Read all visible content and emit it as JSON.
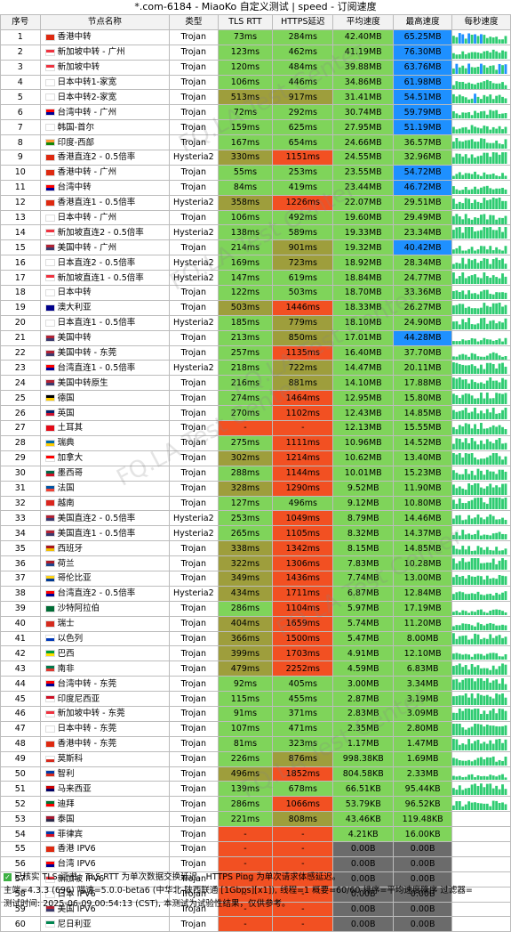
{
  "title": "*.com-6184 - MiaoKo 自定义测试 | speed - 订阅速度",
  "headers": [
    "序号",
    "节点名称",
    "类型",
    "TLS RTT",
    "HTTPS延迟",
    "平均速度",
    "最高速度",
    "每秒速度"
  ],
  "colors": {
    "green": "#7fd45a",
    "red": "#f25022",
    "olive": "#9e9e3c",
    "yellow_green": "#b8cf3d",
    "gray": "#6b6b6b",
    "blue": "#1e90ff",
    "header": "#f2f2f2"
  },
  "rows": [
    {
      "i": "1",
      "name": "香港中转",
      "flag": "HK",
      "type": "Trojan",
      "tls": "73ms",
      "https": "284ms",
      "avg": "42.40MB",
      "max": "65.25MB"
    },
    {
      "i": "2",
      "name": "新加坡中转 - 广州",
      "flag": "SG",
      "type": "Trojan",
      "tls": "123ms",
      "https": "462ms",
      "avg": "41.19MB",
      "max": "76.30MB"
    },
    {
      "i": "3",
      "name": "新加坡中转",
      "flag": "SG",
      "type": "Trojan",
      "tls": "120ms",
      "https": "484ms",
      "avg": "39.88MB",
      "max": "63.76MB"
    },
    {
      "i": "4",
      "name": "日本中转1-家宽",
      "flag": "JP",
      "type": "Trojan",
      "tls": "106ms",
      "https": "446ms",
      "avg": "34.86MB",
      "max": "61.98MB"
    },
    {
      "i": "5",
      "name": "日本中转2-家宽",
      "flag": "JP",
      "type": "Trojan",
      "tls": "513ms",
      "https": "917ms",
      "avg": "31.41MB",
      "max": "54.51MB"
    },
    {
      "i": "6",
      "name": "台湾中转 - 广州",
      "flag": "TW",
      "type": "Trojan",
      "tls": "72ms",
      "https": "292ms",
      "avg": "30.74MB",
      "max": "59.79MB"
    },
    {
      "i": "7",
      "name": "韩国-首尔",
      "flag": "KR",
      "type": "Trojan",
      "tls": "159ms",
      "https": "625ms",
      "avg": "27.95MB",
      "max": "51.19MB"
    },
    {
      "i": "8",
      "name": "印度-西部",
      "flag": "IN",
      "type": "Trojan",
      "tls": "167ms",
      "https": "654ms",
      "avg": "24.66MB",
      "max": "36.57MB"
    },
    {
      "i": "9",
      "name": "香港直连2 - 0.5倍率",
      "flag": "HK",
      "type": "Hysteria2",
      "tls": "330ms",
      "https": "1151ms",
      "avg": "24.55MB",
      "max": "32.96MB"
    },
    {
      "i": "10",
      "name": "香港中转 - 广州",
      "flag": "HK",
      "type": "Trojan",
      "tls": "55ms",
      "https": "253ms",
      "avg": "23.55MB",
      "max": "54.72MB"
    },
    {
      "i": "11",
      "name": "台湾中转",
      "flag": "TW",
      "type": "Trojan",
      "tls": "84ms",
      "https": "419ms",
      "avg": "23.44MB",
      "max": "46.72MB"
    },
    {
      "i": "12",
      "name": "香港直连1 - 0.5倍率",
      "flag": "HK",
      "type": "Hysteria2",
      "tls": "358ms",
      "https": "1226ms",
      "avg": "22.07MB",
      "max": "29.51MB"
    },
    {
      "i": "13",
      "name": "日本中转 - 广州",
      "flag": "JP",
      "type": "Trojan",
      "tls": "106ms",
      "https": "492ms",
      "avg": "19.60MB",
      "max": "29.49MB"
    },
    {
      "i": "14",
      "name": "新加坡直连2 - 0.5倍率",
      "flag": "SG",
      "type": "Hysteria2",
      "tls": "138ms",
      "https": "589ms",
      "avg": "19.33MB",
      "max": "23.34MB"
    },
    {
      "i": "15",
      "name": "美国中转 - 广州",
      "flag": "US",
      "type": "Trojan",
      "tls": "214ms",
      "https": "901ms",
      "avg": "19.32MB",
      "max": "40.42MB"
    },
    {
      "i": "16",
      "name": "日本直连2 - 0.5倍率",
      "flag": "JP",
      "type": "Hysteria2",
      "tls": "169ms",
      "https": "723ms",
      "avg": "18.92MB",
      "max": "28.34MB"
    },
    {
      "i": "17",
      "name": "新加坡直连1 - 0.5倍率",
      "flag": "SG",
      "type": "Hysteria2",
      "tls": "147ms",
      "https": "619ms",
      "avg": "18.84MB",
      "max": "24.77MB"
    },
    {
      "i": "18",
      "name": "日本中转",
      "flag": "JP",
      "type": "Trojan",
      "tls": "122ms",
      "https": "503ms",
      "avg": "18.70MB",
      "max": "33.36MB"
    },
    {
      "i": "19",
      "name": "澳大利亚",
      "flag": "AU",
      "type": "Trojan",
      "tls": "503ms",
      "https": "1446ms",
      "avg": "18.33MB",
      "max": "26.27MB"
    },
    {
      "i": "20",
      "name": "日本直连1 - 0.5倍率",
      "flag": "JP",
      "type": "Hysteria2",
      "tls": "185ms",
      "https": "779ms",
      "avg": "18.10MB",
      "max": "24.90MB"
    },
    {
      "i": "21",
      "name": "美国中转",
      "flag": "US",
      "type": "Trojan",
      "tls": "213ms",
      "https": "850ms",
      "avg": "17.01MB",
      "max": "44.28MB"
    },
    {
      "i": "22",
      "name": "美国中转 - 东莞",
      "flag": "US",
      "type": "Trojan",
      "tls": "257ms",
      "https": "1135ms",
      "avg": "16.40MB",
      "max": "37.70MB"
    },
    {
      "i": "23",
      "name": "台湾直连1 - 0.5倍率",
      "flag": "TW",
      "type": "Hysteria2",
      "tls": "218ms",
      "https": "722ms",
      "avg": "14.47MB",
      "max": "20.11MB"
    },
    {
      "i": "24",
      "name": "美国中转原生",
      "flag": "US",
      "type": "Trojan",
      "tls": "216ms",
      "https": "881ms",
      "avg": "14.10MB",
      "max": "17.88MB"
    },
    {
      "i": "25",
      "name": "德国",
      "flag": "DE",
      "type": "Trojan",
      "tls": "274ms",
      "https": "1464ms",
      "avg": "12.95MB",
      "max": "15.80MB"
    },
    {
      "i": "26",
      "name": "英国",
      "flag": "GB",
      "type": "Trojan",
      "tls": "270ms",
      "https": "1102ms",
      "avg": "12.43MB",
      "max": "14.85MB"
    },
    {
      "i": "27",
      "name": "土耳其",
      "flag": "TR",
      "type": "Trojan",
      "tls": "-",
      "https": "-",
      "avg": "12.13MB",
      "max": "15.55MB"
    },
    {
      "i": "28",
      "name": "瑞典",
      "flag": "SE",
      "type": "Trojan",
      "tls": "275ms",
      "https": "1111ms",
      "avg": "10.96MB",
      "max": "14.52MB"
    },
    {
      "i": "29",
      "name": "加拿大",
      "flag": "CA",
      "type": "Trojan",
      "tls": "302ms",
      "https": "1214ms",
      "avg": "10.62MB",
      "max": "13.40MB"
    },
    {
      "i": "30",
      "name": "墨西哥",
      "flag": "MX",
      "type": "Trojan",
      "tls": "288ms",
      "https": "1144ms",
      "avg": "10.01MB",
      "max": "15.23MB"
    },
    {
      "i": "31",
      "name": "法国",
      "flag": "FR",
      "type": "Trojan",
      "tls": "328ms",
      "https": "1290ms",
      "avg": "9.52MB",
      "max": "11.90MB"
    },
    {
      "i": "32",
      "name": "越南",
      "flag": "VN",
      "type": "Trojan",
      "tls": "127ms",
      "https": "496ms",
      "avg": "9.12MB",
      "max": "10.80MB"
    },
    {
      "i": "33",
      "name": "美国直连2 - 0.5倍率",
      "flag": "US",
      "type": "Hysteria2",
      "tls": "253ms",
      "https": "1049ms",
      "avg": "8.79MB",
      "max": "14.46MB"
    },
    {
      "i": "34",
      "name": "美国直连1 - 0.5倍率",
      "flag": "US",
      "type": "Hysteria2",
      "tls": "265ms",
      "https": "1105ms",
      "avg": "8.32MB",
      "max": "14.37MB"
    },
    {
      "i": "35",
      "name": "西班牙",
      "flag": "ES",
      "type": "Trojan",
      "tls": "338ms",
      "https": "1342ms",
      "avg": "8.15MB",
      "max": "14.85MB"
    },
    {
      "i": "36",
      "name": "荷兰",
      "flag": "NL",
      "type": "Trojan",
      "tls": "322ms",
      "https": "1306ms",
      "avg": "7.83MB",
      "max": "10.28MB"
    },
    {
      "i": "37",
      "name": "哥伦比亚",
      "flag": "CO",
      "type": "Trojan",
      "tls": "349ms",
      "https": "1436ms",
      "avg": "7.74MB",
      "max": "13.00MB"
    },
    {
      "i": "38",
      "name": "台湾直连2 - 0.5倍率",
      "flag": "TW",
      "type": "Hysteria2",
      "tls": "434ms",
      "https": "1711ms",
      "avg": "6.87MB",
      "max": "12.84MB"
    },
    {
      "i": "39",
      "name": "沙特阿拉伯",
      "flag": "SA",
      "type": "Trojan",
      "tls": "286ms",
      "https": "1104ms",
      "avg": "5.97MB",
      "max": "17.19MB"
    },
    {
      "i": "40",
      "name": "瑞士",
      "flag": "CH",
      "type": "Trojan",
      "tls": "404ms",
      "https": "1659ms",
      "avg": "5.74MB",
      "max": "11.20MB"
    },
    {
      "i": "41",
      "name": "以色列",
      "flag": "IL",
      "type": "Trojan",
      "tls": "366ms",
      "https": "1500ms",
      "avg": "5.47MB",
      "max": "8.00MB"
    },
    {
      "i": "42",
      "name": "巴西",
      "flag": "BR",
      "type": "Trojan",
      "tls": "399ms",
      "https": "1703ms",
      "avg": "4.91MB",
      "max": "12.10MB"
    },
    {
      "i": "43",
      "name": "南非",
      "flag": "ZA",
      "type": "Trojan",
      "tls": "479ms",
      "https": "2252ms",
      "avg": "4.59MB",
      "max": "6.83MB"
    },
    {
      "i": "44",
      "name": "台湾中转 - 东莞",
      "flag": "TW",
      "type": "Trojan",
      "tls": "92ms",
      "https": "405ms",
      "avg": "3.00MB",
      "max": "3.34MB"
    },
    {
      "i": "45",
      "name": "印度尼西亚",
      "flag": "ID",
      "type": "Trojan",
      "tls": "115ms",
      "https": "455ms",
      "avg": "2.87MB",
      "max": "3.19MB"
    },
    {
      "i": "46",
      "name": "新加坡中转 - 东莞",
      "flag": "SG",
      "type": "Trojan",
      "tls": "91ms",
      "https": "371ms",
      "avg": "2.83MB",
      "max": "3.09MB"
    },
    {
      "i": "47",
      "name": "日本中转 - 东莞",
      "flag": "JP",
      "type": "Trojan",
      "tls": "107ms",
      "https": "471ms",
      "avg": "2.35MB",
      "max": "2.80MB"
    },
    {
      "i": "48",
      "name": "香港中转 - 东莞",
      "flag": "HK",
      "type": "Trojan",
      "tls": "81ms",
      "https": "323ms",
      "avg": "1.17MB",
      "max": "1.47MB"
    },
    {
      "i": "49",
      "name": "莫斯科",
      "flag": "RU",
      "type": "Trojan",
      "tls": "226ms",
      "https": "876ms",
      "avg": "998.38KB",
      "max": "1.69MB"
    },
    {
      "i": "50",
      "name": "智利",
      "flag": "CL",
      "type": "Trojan",
      "tls": "496ms",
      "https": "1852ms",
      "avg": "804.58KB",
      "max": "2.33MB"
    },
    {
      "i": "51",
      "name": "马来西亚",
      "flag": "MY",
      "type": "Trojan",
      "tls": "139ms",
      "https": "678ms",
      "avg": "66.51KB",
      "max": "95.44KB"
    },
    {
      "i": "52",
      "name": "迪拜",
      "flag": "AE",
      "type": "Trojan",
      "tls": "286ms",
      "https": "1066ms",
      "avg": "53.79KB",
      "max": "96.52KB"
    },
    {
      "i": "53",
      "name": "泰国",
      "flag": "TH",
      "type": "Trojan",
      "tls": "221ms",
      "https": "808ms",
      "avg": "43.46KB",
      "max": "119.48KB"
    },
    {
      "i": "54",
      "name": "菲律宾",
      "flag": "PH",
      "type": "Trojan",
      "tls": "-",
      "https": "-",
      "avg": "4.21KB",
      "max": "16.00KB"
    },
    {
      "i": "55",
      "name": "香港 IPV6",
      "flag": "HK",
      "type": "Trojan",
      "tls": "-",
      "https": "-",
      "avg": "0.00B",
      "max": "0.00B"
    },
    {
      "i": "56",
      "name": "台湾 IPV6",
      "flag": "TW",
      "type": "Trojan",
      "tls": "-",
      "https": "-",
      "avg": "0.00B",
      "max": "0.00B"
    },
    {
      "i": "57",
      "name": "新加坡 IPV6",
      "flag": "SG",
      "type": "Trojan",
      "tls": "-",
      "https": "-",
      "avg": "0.00B",
      "max": "0.00B"
    },
    {
      "i": "58",
      "name": "日本 IPV6",
      "flag": "JP",
      "type": "Trojan",
      "tls": "-",
      "https": "-",
      "avg": "0.00B",
      "max": "0.00B"
    },
    {
      "i": "59",
      "name": "美国 IPV6",
      "flag": "US",
      "type": "Trojan",
      "tls": "-",
      "https": "-",
      "avg": "0.00B",
      "max": "0.00B"
    },
    {
      "i": "60",
      "name": "尼日利亚",
      "flag": "NG",
      "type": "Trojan",
      "tls": "-",
      "https": "-",
      "avg": "0.00B",
      "max": "0.00B"
    }
  ],
  "footer": {
    "line1": "已核实 TLS 证书。TLS RTT 为单次数据交换延迟，HTTPS Ping 为单次请求体感延迟。",
    "line2": "主端=4.3.3 (696) 喵速=5.0.0-beta6 (中华北-陕西联通 [1Gbps][x1]), 线程=1 概要=60/60 排序=平均速度降序 过滤器=",
    "line3": "测试时间: 2025-06-09 00:54:13 (CST), 本测试为试验性结果，仅供参考。"
  },
  "watermark": "FQ.LA Test Center"
}
